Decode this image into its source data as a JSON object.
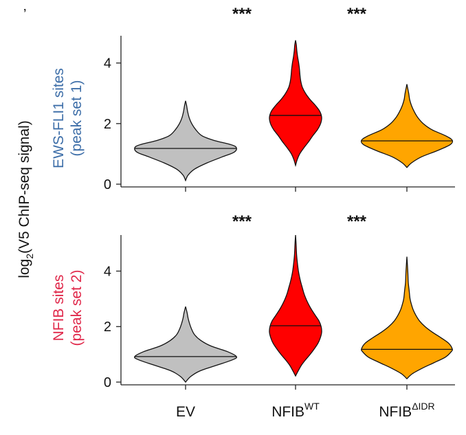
{
  "chart_data": {
    "type": "violin",
    "panel_letter": "’",
    "ylabel": {
      "prefix": "log",
      "subscript": "2",
      "suffix": "(V5 ChIP-seq signal)"
    },
    "categories": [
      {
        "base": "EV",
        "sup": ""
      },
      {
        "base": "NFIB",
        "sup": "WT"
      },
      {
        "base": "NFIB",
        "sup": "ΔIDR"
      }
    ],
    "colors": {
      "EV": "#c0c0c0",
      "NFIB_WT": "#ff0000",
      "NFIB_dIDR": "#ffa500",
      "panel1_label": "#3d6ea8",
      "panel2_label": "#e0284a"
    },
    "significance": [
      "***",
      "***"
    ],
    "panels": [
      {
        "label_line1": "EWS-FLI1 sites",
        "label_line2": "(peak set 1)",
        "ylim": [
          0,
          4.9
        ],
        "yticks": [
          0,
          2,
          4
        ],
        "series": [
          {
            "name": "EV",
            "min": 0.12,
            "max": 2.75,
            "median": 1.18,
            "profile": [
              [
                0.12,
                0.0
              ],
              [
                0.3,
                0.05
              ],
              [
                0.5,
                0.18
              ],
              [
                0.7,
                0.42
              ],
              [
                0.9,
                0.72
              ],
              [
                1.05,
                0.95
              ],
              [
                1.2,
                1.0
              ],
              [
                1.3,
                0.9
              ],
              [
                1.45,
                0.55
              ],
              [
                1.6,
                0.32
              ],
              [
                1.8,
                0.2
              ],
              [
                2.0,
                0.12
              ],
              [
                2.2,
                0.07
              ],
              [
                2.4,
                0.04
              ],
              [
                2.6,
                0.02
              ],
              [
                2.75,
                0.0
              ]
            ]
          },
          {
            "name": "NFIB WT",
            "min": 0.62,
            "max": 4.75,
            "median": 2.27,
            "profile": [
              [
                0.62,
                0.0
              ],
              [
                0.8,
                0.06
              ],
              [
                1.0,
                0.16
              ],
              [
                1.2,
                0.32
              ],
              [
                1.4,
                0.5
              ],
              [
                1.6,
                0.66
              ],
              [
                1.8,
                0.84
              ],
              [
                2.0,
                0.96
              ],
              [
                2.2,
                1.0
              ],
              [
                2.4,
                0.93
              ],
              [
                2.6,
                0.76
              ],
              [
                2.8,
                0.55
              ],
              [
                3.0,
                0.38
              ],
              [
                3.2,
                0.26
              ],
              [
                3.4,
                0.2
              ],
              [
                3.6,
                0.17
              ],
              [
                3.8,
                0.15
              ],
              [
                4.0,
                0.12
              ],
              [
                4.2,
                0.08
              ],
              [
                4.4,
                0.05
              ],
              [
                4.6,
                0.03
              ],
              [
                4.75,
                0.0
              ]
            ]
          },
          {
            "name": "NFIB ΔIDR",
            "min": 0.55,
            "max": 3.3,
            "median": 1.43,
            "profile": [
              [
                0.55,
                0.0
              ],
              [
                0.7,
                0.1
              ],
              [
                0.9,
                0.32
              ],
              [
                1.1,
                0.66
              ],
              [
                1.3,
                0.95
              ],
              [
                1.45,
                1.0
              ],
              [
                1.6,
                0.85
              ],
              [
                1.8,
                0.55
              ],
              [
                2.0,
                0.36
              ],
              [
                2.2,
                0.24
              ],
              [
                2.4,
                0.16
              ],
              [
                2.6,
                0.1
              ],
              [
                2.8,
                0.06
              ],
              [
                3.0,
                0.04
              ],
              [
                3.3,
                0.0
              ]
            ]
          }
        ]
      },
      {
        "label_line1": "NFIB sites",
        "label_line2": "(peak set 2)",
        "ylim": [
          0,
          5.3
        ],
        "yticks": [
          0,
          2,
          4
        ],
        "series": [
          {
            "name": "EV",
            "min": 0.0,
            "max": 2.72,
            "median": 0.92,
            "profile": [
              [
                0.0,
                0.0
              ],
              [
                0.2,
                0.1
              ],
              [
                0.4,
                0.28
              ],
              [
                0.6,
                0.6
              ],
              [
                0.8,
                0.92
              ],
              [
                0.92,
                1.0
              ],
              [
                1.1,
                0.82
              ],
              [
                1.3,
                0.5
              ],
              [
                1.5,
                0.3
              ],
              [
                1.7,
                0.18
              ],
              [
                1.9,
                0.12
              ],
              [
                2.1,
                0.08
              ],
              [
                2.3,
                0.05
              ],
              [
                2.5,
                0.03
              ],
              [
                2.72,
                0.0
              ]
            ]
          },
          {
            "name": "NFIB WT",
            "min": 0.22,
            "max": 5.3,
            "median": 2.03,
            "profile": [
              [
                0.22,
                0.0
              ],
              [
                0.4,
                0.1
              ],
              [
                0.6,
                0.22
              ],
              [
                0.8,
                0.38
              ],
              [
                1.0,
                0.56
              ],
              [
                1.2,
                0.72
              ],
              [
                1.4,
                0.86
              ],
              [
                1.6,
                0.95
              ],
              [
                1.8,
                1.0
              ],
              [
                2.0,
                0.98
              ],
              [
                2.2,
                0.9
              ],
              [
                2.4,
                0.76
              ],
              [
                2.6,
                0.62
              ],
              [
                2.8,
                0.5
              ],
              [
                3.0,
                0.4
              ],
              [
                3.2,
                0.32
              ],
              [
                3.4,
                0.26
              ],
              [
                3.6,
                0.2
              ],
              [
                3.8,
                0.15
              ],
              [
                4.0,
                0.11
              ],
              [
                4.3,
                0.07
              ],
              [
                4.6,
                0.04
              ],
              [
                5.0,
                0.02
              ],
              [
                5.3,
                0.0
              ]
            ]
          },
          {
            "name": "NFIB ΔIDR",
            "min": 0.12,
            "max": 4.52,
            "median": 1.18,
            "profile": [
              [
                0.12,
                0.0
              ],
              [
                0.3,
                0.12
              ],
              [
                0.5,
                0.34
              ],
              [
                0.7,
                0.6
              ],
              [
                0.9,
                0.85
              ],
              [
                1.1,
                0.98
              ],
              [
                1.2,
                1.0
              ],
              [
                1.4,
                0.92
              ],
              [
                1.6,
                0.75
              ],
              [
                1.8,
                0.56
              ],
              [
                2.0,
                0.4
              ],
              [
                2.2,
                0.28
              ],
              [
                2.4,
                0.2
              ],
              [
                2.6,
                0.14
              ],
              [
                2.8,
                0.1
              ],
              [
                3.0,
                0.07
              ],
              [
                3.3,
                0.05
              ],
              [
                3.6,
                0.03
              ],
              [
                4.0,
                0.02
              ],
              [
                4.52,
                0.0
              ]
            ]
          }
        ]
      }
    ]
  }
}
